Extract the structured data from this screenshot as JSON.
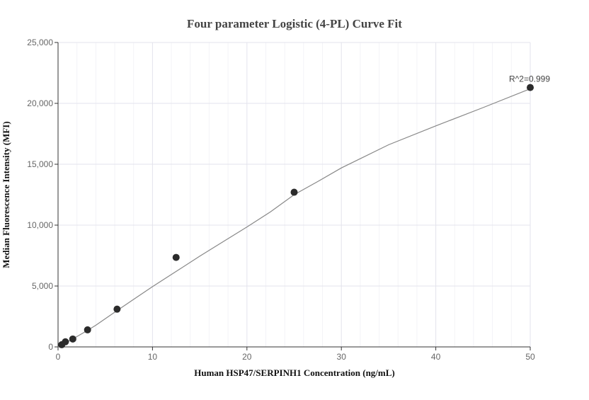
{
  "chart_data": {
    "type": "scatter",
    "title": "Four parameter Logistic (4-PL) Curve Fit",
    "xlabel": "Human HSP47/SERPINH1 Concentration (ng/mL)",
    "ylabel": "Median Fluorescence Intensity (MFI)",
    "xlim": [
      0,
      50
    ],
    "ylim": [
      0,
      25000
    ],
    "x_ticks": [
      0,
      10,
      20,
      30,
      40,
      50
    ],
    "x_tick_labels": [
      "0",
      "10",
      "20",
      "30",
      "40",
      "50"
    ],
    "y_ticks": [
      0,
      5000,
      10000,
      15000,
      20000,
      25000
    ],
    "y_tick_labels": [
      "0",
      "5,000",
      "10,000",
      "15,000",
      "20,000",
      "25,000"
    ],
    "grid": true,
    "series": [
      {
        "points": [
          {
            "x": 0.39,
            "y": 180
          },
          {
            "x": 0.78,
            "y": 420
          },
          {
            "x": 1.56,
            "y": 650
          },
          {
            "x": 3.125,
            "y": 1400
          },
          {
            "x": 6.25,
            "y": 3100
          },
          {
            "x": 12.5,
            "y": 7350
          },
          {
            "x": 25,
            "y": 12700
          },
          {
            "x": 50,
            "y": 21300
          }
        ]
      }
    ],
    "fit_curve": {
      "model": "4PL",
      "points": [
        {
          "x": 0,
          "y": 0
        },
        {
          "x": 0.5,
          "y": 210
        },
        {
          "x": 1,
          "y": 420
        },
        {
          "x": 2,
          "y": 850
        },
        {
          "x": 3,
          "y": 1300
        },
        {
          "x": 4,
          "y": 1780
        },
        {
          "x": 6,
          "y": 2850
        },
        {
          "x": 8,
          "y": 3900
        },
        {
          "x": 10,
          "y": 4950
        },
        {
          "x": 12.5,
          "y": 6200
        },
        {
          "x": 15,
          "y": 7450
        },
        {
          "x": 17.5,
          "y": 8650
        },
        {
          "x": 20,
          "y": 9850
        },
        {
          "x": 22.5,
          "y": 11100
        },
        {
          "x": 25,
          "y": 12500
        },
        {
          "x": 27.5,
          "y": 13580
        },
        {
          "x": 30,
          "y": 14700
        },
        {
          "x": 35,
          "y": 16600
        },
        {
          "x": 40,
          "y": 18150
        },
        {
          "x": 45,
          "y": 19650
        },
        {
          "x": 50,
          "y": 21200
        }
      ]
    },
    "annotation": {
      "text": "R^2=0.999",
      "x": 50,
      "y": 21300
    }
  }
}
